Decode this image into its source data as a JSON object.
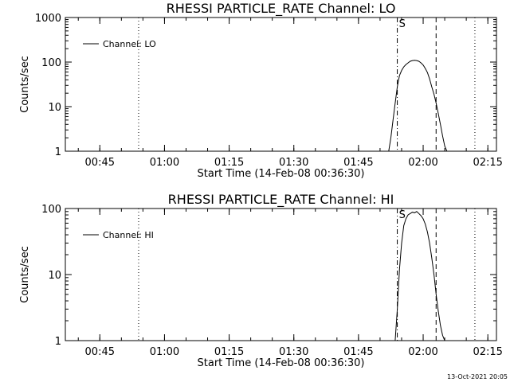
{
  "chart_data": [
    {
      "type": "line",
      "title": "RHESSI PARTICLE_RATE Channel: LO",
      "xlabel": "Start Time (14-Feb-08 00:36:30)",
      "ylabel": "Counts/sec",
      "yscale": "log",
      "ylim": [
        1,
        1000
      ],
      "xlim": [
        "00:37",
        "02:17"
      ],
      "xtick_labels": [
        "00:45",
        "01:00",
        "01:15",
        "01:30",
        "01:45",
        "02:00",
        "02:15"
      ],
      "ytick_labels": [
        "1",
        "10",
        "100",
        "1000"
      ],
      "legend": {
        "location": "top-left",
        "entries": [
          "Channel: LO"
        ]
      },
      "grid": false,
      "markers": [
        {
          "time": "00:54",
          "style": "dotted"
        },
        {
          "time": "01:54",
          "style": "dash-dot",
          "label": "S"
        },
        {
          "time": "02:03",
          "style": "dashed"
        },
        {
          "time": "02:12",
          "style": "dotted"
        }
      ],
      "series": [
        {
          "name": "Channel: LO",
          "x": [
            "01:52:00",
            "01:52:30",
            "01:53:00",
            "01:53:30",
            "01:54:00",
            "01:54:30",
            "01:55:00",
            "01:55:30",
            "01:56:00",
            "01:56:30",
            "01:57:00",
            "01:57:30",
            "01:58:00",
            "01:58:30",
            "01:59:00",
            "01:59:30",
            "02:00:00",
            "02:00:30",
            "02:01:00",
            "02:01:30",
            "02:02:00",
            "02:02:30",
            "02:03:00",
            "02:03:30",
            "02:04:00",
            "02:04:30",
            "02:05:00",
            "02:05:30"
          ],
          "y": [
            1,
            2,
            5,
            12,
            28,
            50,
            65,
            78,
            88,
            96,
            104,
            108,
            110,
            108,
            104,
            96,
            86,
            72,
            58,
            42,
            28,
            19,
            12,
            7,
            4,
            2.2,
            1.3,
            1
          ]
        }
      ]
    },
    {
      "type": "line",
      "title": "RHESSI PARTICLE_RATE Channel: HI",
      "xlabel": "Start Time (14-Feb-08 00:36:30)",
      "ylabel": "Counts/sec",
      "yscale": "log",
      "ylim": [
        1,
        100
      ],
      "xlim": [
        "00:37",
        "02:17"
      ],
      "xtick_labels": [
        "00:45",
        "01:00",
        "01:15",
        "01:30",
        "01:45",
        "02:00",
        "02:15"
      ],
      "ytick_labels": [
        "1",
        "10",
        "100"
      ],
      "legend": {
        "location": "top-left",
        "entries": [
          "Channel: HI"
        ]
      },
      "grid": false,
      "markers": [
        {
          "time": "00:54",
          "style": "dotted"
        },
        {
          "time": "01:54",
          "style": "dash-dot",
          "label": "S"
        },
        {
          "time": "02:03",
          "style": "dashed"
        },
        {
          "time": "02:12",
          "style": "dotted"
        }
      ],
      "series": [
        {
          "name": "Channel: HI",
          "x": [
            "01:53:30",
            "01:54:00",
            "01:54:30",
            "01:55:00",
            "01:55:30",
            "01:56:00",
            "01:56:30",
            "01:57:00",
            "01:57:30",
            "01:58:00",
            "01:58:30",
            "01:59:00",
            "01:59:30",
            "02:00:00",
            "02:00:30",
            "02:01:00",
            "02:01:30",
            "02:02:00",
            "02:02:30",
            "02:03:00",
            "02:03:30",
            "02:04:00",
            "02:04:30",
            "02:05:00"
          ],
          "y": [
            1,
            3,
            12,
            30,
            55,
            70,
            80,
            84,
            88,
            86,
            90,
            84,
            78,
            70,
            58,
            44,
            30,
            18,
            10,
            5,
            2.8,
            1.7,
            1.2,
            1
          ]
        }
      ]
    }
  ],
  "footer": {
    "timestamp": "13-Oct-2021 20:05"
  }
}
